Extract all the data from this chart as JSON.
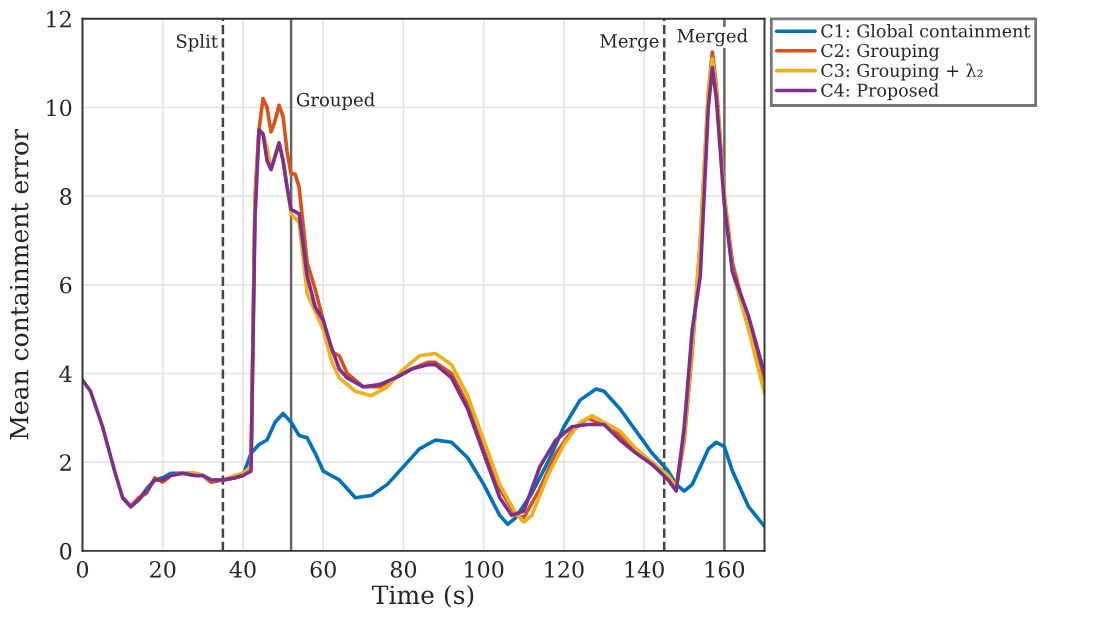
{
  "chart_data": {
    "type": "line",
    "xlabel": "Time (s)",
    "ylabel": "Mean containment error",
    "xlim": [
      0,
      170
    ],
    "ylim": [
      0,
      12
    ],
    "xticks": [
      0,
      20,
      40,
      60,
      80,
      100,
      120,
      140,
      160
    ],
    "yticks": [
      0,
      2,
      4,
      6,
      8,
      10,
      12
    ],
    "grid": true,
    "legend": "top right",
    "line_style": "solid",
    "marker": "none",
    "ref_lines": [
      {
        "axis": "x",
        "value": 35,
        "label": "Split",
        "line_style": "dashed",
        "color": "#444444"
      },
      {
        "axis": "x",
        "value": 52,
        "label": "Grouped",
        "line_style": "solid",
        "color": "#666666"
      },
      {
        "axis": "x",
        "value": 145,
        "label": "Merge",
        "line_style": "dashed",
        "color": "#444444"
      },
      {
        "axis": "x",
        "value": 160,
        "label": "Merged",
        "line_style": "solid",
        "color": "#666666"
      }
    ],
    "series": [
      {
        "name": "C1: Global containment",
        "color": "#0072bd",
        "x": [
          12,
          14,
          16,
          18,
          20,
          22,
          25,
          28,
          30,
          32,
          35,
          38,
          40,
          42,
          44,
          46,
          48,
          50,
          52,
          54,
          56,
          58,
          60,
          62,
          64,
          66,
          68,
          72,
          76,
          80,
          84,
          88,
          92,
          96,
          100,
          104,
          106,
          108,
          112,
          116,
          120,
          124,
          128,
          130,
          134,
          138,
          142,
          146,
          148,
          150,
          152,
          154,
          156,
          158,
          160,
          162,
          166,
          170
        ],
        "values": [
          1.0,
          1.15,
          1.4,
          1.6,
          1.65,
          1.75,
          1.75,
          1.7,
          1.7,
          1.6,
          1.6,
          1.65,
          1.7,
          2.2,
          2.4,
          2.5,
          2.9,
          3.1,
          2.9,
          2.6,
          2.55,
          2.2,
          1.8,
          1.7,
          1.6,
          1.4,
          1.2,
          1.25,
          1.5,
          1.9,
          2.3,
          2.5,
          2.45,
          2.1,
          1.5,
          0.8,
          0.6,
          0.75,
          1.3,
          2.0,
          2.8,
          3.4,
          3.65,
          3.6,
          3.2,
          2.7,
          2.2,
          1.8,
          1.5,
          1.35,
          1.5,
          1.9,
          2.3,
          2.45,
          2.35,
          1.8,
          1.0,
          0.55
        ]
      },
      {
        "name": "C2: Grouping",
        "color": "#d95319",
        "x": [
          10,
          12,
          14,
          16,
          18,
          20,
          22,
          25,
          28,
          30,
          32,
          35,
          38,
          40,
          42,
          43,
          44,
          45,
          46,
          47,
          48,
          49,
          50,
          51,
          52,
          53,
          54,
          56,
          58,
          60,
          62,
          64,
          66,
          70,
          74,
          78,
          82,
          86,
          88,
          92,
          96,
          100,
          104,
          108,
          110,
          114,
          118,
          122,
          126,
          128,
          132,
          136,
          140,
          144,
          148,
          150,
          152,
          154,
          156,
          157,
          158,
          160,
          162,
          164,
          166,
          168,
          170
        ],
        "values": [
          1.2,
          1.0,
          1.2,
          1.3,
          1.65,
          1.55,
          1.7,
          1.75,
          1.75,
          1.7,
          1.55,
          1.6,
          1.65,
          1.75,
          1.9,
          8.0,
          9.5,
          10.2,
          10.0,
          9.45,
          9.7,
          10.05,
          9.8,
          9.0,
          8.5,
          8.5,
          8.2,
          6.5,
          5.9,
          5.2,
          4.5,
          4.4,
          4.0,
          3.7,
          3.7,
          3.9,
          4.1,
          4.25,
          4.25,
          4.0,
          3.3,
          2.4,
          1.4,
          0.8,
          0.75,
          1.4,
          2.2,
          2.7,
          3.0,
          2.9,
          2.8,
          2.4,
          2.1,
          1.8,
          1.45,
          2.5,
          4.5,
          7.0,
          10.3,
          11.25,
          10.5,
          8.0,
          6.5,
          5.8,
          5.2,
          4.5,
          3.85
        ]
      },
      {
        "name": "C3: Grouping + λ₂",
        "color": "#edb120",
        "x": [
          22,
          25,
          28,
          30,
          32,
          35,
          38,
          40,
          42,
          43,
          44,
          45,
          46,
          47,
          48,
          49,
          50,
          52,
          54,
          56,
          58,
          60,
          62,
          64,
          68,
          72,
          76,
          80,
          84,
          88,
          92,
          96,
          100,
          104,
          108,
          110,
          112,
          116,
          120,
          124,
          127,
          130,
          134,
          138,
          142,
          146,
          148,
          150,
          152,
          154,
          156,
          157,
          158,
          160,
          162,
          166,
          170
        ],
        "values": [
          1.7,
          1.75,
          1.75,
          1.7,
          1.6,
          1.6,
          1.7,
          1.75,
          1.9,
          7.8,
          9.5,
          9.4,
          9.1,
          8.6,
          8.9,
          9.2,
          8.8,
          7.6,
          7.4,
          5.8,
          5.4,
          5.0,
          4.3,
          3.9,
          3.6,
          3.5,
          3.7,
          4.1,
          4.4,
          4.45,
          4.2,
          3.5,
          2.5,
          1.5,
          0.85,
          0.65,
          0.8,
          1.7,
          2.4,
          2.9,
          3.05,
          2.9,
          2.7,
          2.3,
          2.0,
          1.7,
          1.45,
          2.6,
          4.6,
          7.0,
          10.4,
          11.1,
          10.4,
          8.0,
          6.3,
          5.0,
          3.55
        ]
      },
      {
        "name": "C4: Proposed",
        "color": "#7e2f8e",
        "x": [
          0,
          2,
          5,
          8,
          10,
          12,
          14,
          16,
          18,
          20,
          22,
          25,
          28,
          30,
          32,
          35,
          38,
          40,
          42,
          43,
          44,
          45,
          46,
          47,
          48,
          49,
          50,
          51,
          52,
          54,
          56,
          58,
          60,
          62,
          64,
          66,
          70,
          74,
          78,
          82,
          86,
          88,
          92,
          96,
          100,
          104,
          107,
          110,
          114,
          118,
          122,
          126,
          130,
          134,
          138,
          142,
          146,
          148,
          150,
          152,
          154,
          156,
          157,
          158,
          160,
          162,
          166,
          170
        ],
        "values": [
          3.85,
          3.6,
          2.8,
          1.8,
          1.2,
          1.0,
          1.15,
          1.35,
          1.6,
          1.6,
          1.7,
          1.75,
          1.7,
          1.7,
          1.6,
          1.6,
          1.65,
          1.7,
          1.8,
          7.5,
          9.5,
          9.4,
          8.8,
          8.6,
          8.9,
          9.2,
          8.8,
          8.2,
          7.7,
          7.6,
          6.2,
          5.5,
          5.2,
          4.6,
          4.1,
          3.9,
          3.7,
          3.75,
          3.9,
          4.1,
          4.2,
          4.2,
          3.9,
          3.2,
          2.2,
          1.2,
          0.8,
          0.9,
          1.9,
          2.5,
          2.8,
          2.85,
          2.85,
          2.5,
          2.2,
          1.95,
          1.6,
          1.35,
          2.8,
          5.0,
          6.2,
          10.0,
          10.9,
          10.2,
          7.8,
          6.3,
          5.3,
          4.0
        ]
      }
    ]
  }
}
